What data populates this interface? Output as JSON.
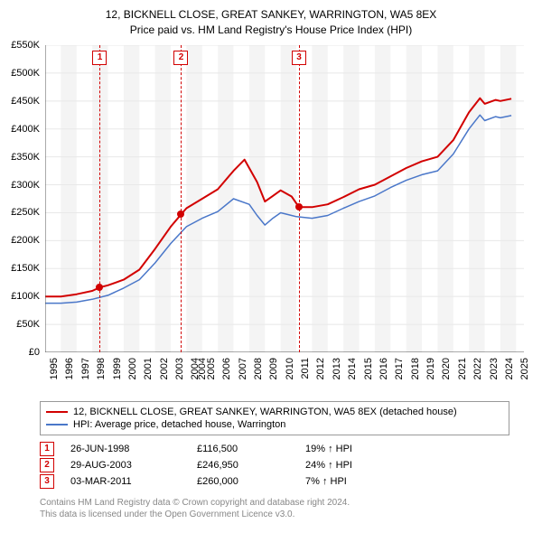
{
  "title": {
    "line1": "12, BICKNELL CLOSE, GREAT SANKEY, WARRINGTON, WA5 8EX",
    "line2": "Price paid vs. HM Land Registry's House Price Index (HPI)"
  },
  "chart": {
    "type": "line",
    "background_color": "#ffffff",
    "band_color": "#f4f4f4",
    "grid_color": "#e8e8e8",
    "axis_color": "#555555",
    "label_fontsize": 11,
    "x": {
      "min": 1995,
      "max": 2025.5,
      "ticks": [
        1995,
        1996,
        1997,
        1998,
        1999,
        2000,
        2001,
        2002,
        2003,
        2004,
        2004,
        2005,
        2006,
        2007,
        2008,
        2009,
        2010,
        2011,
        2012,
        2013,
        2014,
        2015,
        2016,
        2017,
        2018,
        2019,
        2020,
        2021,
        2022,
        2023,
        2024,
        2025
      ]
    },
    "y": {
      "min": 0,
      "max": 550000,
      "step": 50000,
      "labels": [
        "£0",
        "£50K",
        "£100K",
        "£150K",
        "£200K",
        "£250K",
        "£300K",
        "£350K",
        "£400K",
        "£450K",
        "£500K",
        "£550K"
      ]
    },
    "series": [
      {
        "id": "property",
        "label": "12, BICKNELL CLOSE, GREAT SANKEY, WARRINGTON, WA5 8EX (detached house)",
        "color": "#d20000",
        "width": 2,
        "points": [
          [
            1995,
            100000
          ],
          [
            1996,
            100000
          ],
          [
            1997,
            104000
          ],
          [
            1998,
            110000
          ],
          [
            1998.5,
            116500
          ],
          [
            1999,
            120000
          ],
          [
            2000,
            130000
          ],
          [
            2001,
            148000
          ],
          [
            2002,
            185000
          ],
          [
            2003,
            225000
          ],
          [
            2003.66,
            246950
          ],
          [
            2004,
            258000
          ],
          [
            2005,
            275000
          ],
          [
            2006,
            292000
          ],
          [
            2007,
            325000
          ],
          [
            2007.7,
            345000
          ],
          [
            2008,
            330000
          ],
          [
            2008.5,
            305000
          ],
          [
            2009,
            270000
          ],
          [
            2009.5,
            280000
          ],
          [
            2010,
            290000
          ],
          [
            2010.7,
            279000
          ],
          [
            2011.17,
            260000
          ],
          [
            2011.5,
            260000
          ],
          [
            2012,
            260000
          ],
          [
            2013,
            265000
          ],
          [
            2014,
            278000
          ],
          [
            2015,
            292000
          ],
          [
            2016,
            300000
          ],
          [
            2017,
            315000
          ],
          [
            2018,
            330000
          ],
          [
            2019,
            342000
          ],
          [
            2020,
            350000
          ],
          [
            2021,
            380000
          ],
          [
            2022,
            430000
          ],
          [
            2022.7,
            455000
          ],
          [
            2023,
            445000
          ],
          [
            2023.7,
            452000
          ],
          [
            2024,
            450000
          ],
          [
            2024.7,
            454000
          ]
        ]
      },
      {
        "id": "hpi",
        "label": "HPI: Average price, detached house, Warrington",
        "color": "#4a77c9",
        "width": 1.5,
        "points": [
          [
            1995,
            88000
          ],
          [
            1996,
            88000
          ],
          [
            1997,
            90000
          ],
          [
            1998,
            95000
          ],
          [
            1999,
            102000
          ],
          [
            2000,
            115000
          ],
          [
            2001,
            130000
          ],
          [
            2002,
            160000
          ],
          [
            2003,
            195000
          ],
          [
            2004,
            225000
          ],
          [
            2005,
            240000
          ],
          [
            2006,
            252000
          ],
          [
            2007,
            275000
          ],
          [
            2008,
            265000
          ],
          [
            2008.5,
            245000
          ],
          [
            2009,
            228000
          ],
          [
            2009.5,
            240000
          ],
          [
            2010,
            250000
          ],
          [
            2010.7,
            245000
          ],
          [
            2011,
            243000
          ],
          [
            2012,
            240000
          ],
          [
            2013,
            245000
          ],
          [
            2014,
            258000
          ],
          [
            2015,
            270000
          ],
          [
            2016,
            280000
          ],
          [
            2017,
            295000
          ],
          [
            2018,
            308000
          ],
          [
            2019,
            318000
          ],
          [
            2020,
            325000
          ],
          [
            2021,
            355000
          ],
          [
            2022,
            400000
          ],
          [
            2022.7,
            425000
          ],
          [
            2023,
            415000
          ],
          [
            2023.7,
            422000
          ],
          [
            2024,
            420000
          ],
          [
            2024.7,
            424000
          ]
        ]
      }
    ],
    "sale_markers": [
      {
        "n": "1",
        "year": 1998.48,
        "price": 116500,
        "color": "#d20000"
      },
      {
        "n": "2",
        "year": 2003.66,
        "price": 246950,
        "color": "#d20000"
      },
      {
        "n": "3",
        "year": 2011.17,
        "price": 260000,
        "color": "#d20000"
      }
    ]
  },
  "legend": {
    "rows": [
      {
        "color": "#d20000",
        "label": "12, BICKNELL CLOSE, GREAT SANKEY, WARRINGTON, WA5 8EX (detached house)"
      },
      {
        "color": "#4a77c9",
        "label": "HPI: Average price, detached house, Warrington"
      }
    ]
  },
  "sales": [
    {
      "n": "1",
      "date": "26-JUN-1998",
      "price": "£116,500",
      "delta": "19% ↑ HPI",
      "color": "#d20000"
    },
    {
      "n": "2",
      "date": "29-AUG-2003",
      "price": "£246,950",
      "delta": "24% ↑ HPI",
      "color": "#d20000"
    },
    {
      "n": "3",
      "date": "03-MAR-2011",
      "price": "£260,000",
      "delta": "7% ↑ HPI",
      "color": "#d20000"
    }
  ],
  "footnote": {
    "line1": "Contains HM Land Registry data © Crown copyright and database right 2024.",
    "line2": "This data is licensed under the Open Government Licence v3.0."
  }
}
